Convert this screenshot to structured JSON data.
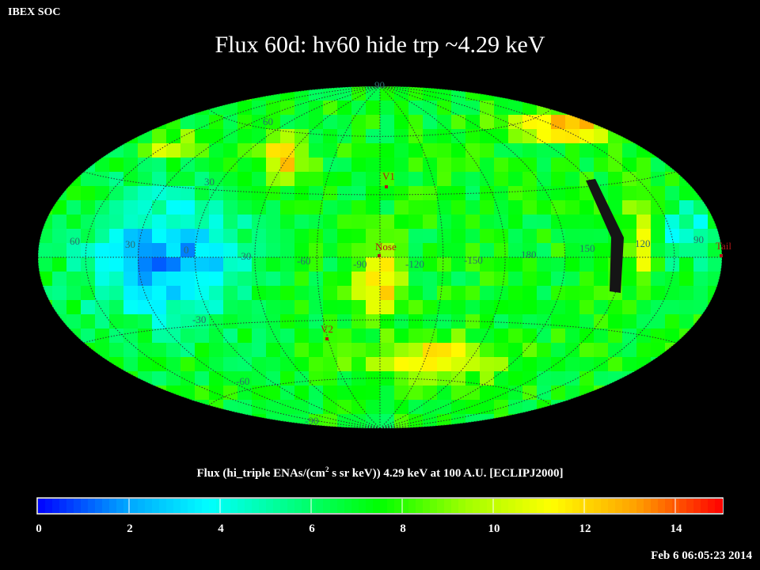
{
  "header": {
    "corner_label": "IBEX SOC",
    "title": "Flux   60d: hv60 hide trp ~4.29 keV"
  },
  "map": {
    "projection": "Hammer-Aitoff (all-sky)",
    "latitude_labels": [
      "90",
      "60",
      "30",
      "0",
      "-30",
      "-60",
      "-90"
    ],
    "longitude_labels": [
      "60",
      "30",
      "0",
      "-30",
      "-60",
      "-90",
      "-120",
      "-150",
      "180",
      "150",
      "120",
      "90"
    ],
    "markers": {
      "v1": "V1",
      "v2": "V2",
      "nose": "Nose",
      "tail": "Tail"
    },
    "marker_color": "#b01818",
    "graticule_color": "#303030"
  },
  "colorbar": {
    "title_prefix": "Flux (hi_triple ENAs/(cm",
    "title_sup": "2",
    "title_suffix": " s sr keV))  4.29 keV at 100 A.U. [ECLIPJ2000]",
    "ticks": [
      "0",
      "2",
      "4",
      "6",
      "8",
      "10",
      "12",
      "14"
    ],
    "range": [
      0,
      15
    ],
    "colors": [
      "#0000ff",
      "#00a0ff",
      "#00ffff",
      "#00ff80",
      "#00ff00",
      "#a0ff00",
      "#ffff00",
      "#ffa000",
      "#ff0000"
    ]
  },
  "footer": {
    "timestamp": "Feb  6 06:05:23 2014"
  }
}
